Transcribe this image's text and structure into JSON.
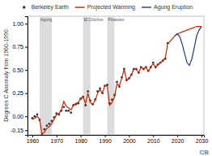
{
  "chart_data": {
    "type": "line",
    "ylabel": "Degrees C Anomaly from 1960-1990",
    "xlim": [
      1958,
      2031
    ],
    "ylim": [
      -0.2,
      1.08
    ],
    "xticks": [
      1960,
      1970,
      1980,
      1990,
      2000,
      2010,
      2020,
      2030
    ],
    "yticks": [
      -0.15,
      {
        "value": 0.0,
        "label": "0.00"
      },
      0.25,
      {
        "value": 0.5,
        "label": "0.50"
      },
      0.75,
      {
        "value": 1.0,
        "label": "1.00"
      }
    ],
    "legend": "top",
    "annotations": [
      {
        "text": "Agung",
        "xmin": 1963,
        "xmax": 1968
      },
      {
        "text": "El Chichon",
        "xmin": 1981,
        "xmax": 1984
      },
      {
        "text": "Pinatubo",
        "xmin": 1991,
        "xmax": 1994
      }
    ],
    "watermark": "CB",
    "series": [
      {
        "name": "Berkeley Earth",
        "type": "scatter",
        "color": "#333333",
        "x": [
          1960,
          1961,
          1962,
          1963,
          1964,
          1965,
          1966,
          1967,
          1968,
          1969,
          1970,
          1971,
          1972,
          1973,
          1974,
          1975,
          1976,
          1977,
          1978,
          1979,
          1980,
          1981,
          1982,
          1983,
          1984,
          1985,
          1986,
          1987,
          1988,
          1989,
          1990,
          1991,
          1992,
          1993,
          1994,
          1995,
          1996,
          1997,
          1998,
          1999,
          2000,
          2001,
          2002,
          2003,
          2004,
          2005,
          2006,
          2007,
          2008,
          2009,
          2010,
          2011,
          2012,
          2013,
          2014,
          2015,
          2016
        ],
        "values": [
          -0.02,
          0.0,
          0.02,
          -0.04,
          -0.2,
          -0.14,
          -0.1,
          -0.08,
          -0.05,
          -0.01,
          0.03,
          0.02,
          0.06,
          0.1,
          0.06,
          0.06,
          0.04,
          0.12,
          0.13,
          0.14,
          0.19,
          0.21,
          0.12,
          0.27,
          0.17,
          0.13,
          0.18,
          0.27,
          0.3,
          0.25,
          0.33,
          0.34,
          0.14,
          0.18,
          0.23,
          0.37,
          0.32,
          0.42,
          0.51,
          0.39,
          0.41,
          0.45,
          0.51,
          0.51,
          0.47,
          0.53,
          0.51,
          0.53,
          0.49,
          0.53,
          0.58,
          0.53,
          0.56,
          0.58,
          0.6,
          0.62,
          0.79
        ]
      },
      {
        "name": "Projected Warming",
        "type": "line",
        "color": "#cc2200",
        "x": [
          1960,
          1961,
          1962,
          1963,
          1964,
          1965,
          1966,
          1967,
          1968,
          1969,
          1970,
          1971,
          1972,
          1973,
          1974,
          1975,
          1976,
          1977,
          1978,
          1979,
          1980,
          1981,
          1982,
          1983,
          1984,
          1985,
          1986,
          1987,
          1988,
          1989,
          1990,
          1991,
          1992,
          1993,
          1994,
          1995,
          1996,
          1997,
          1998,
          1999,
          2000,
          2001,
          2002,
          2003,
          2004,
          2005,
          2006,
          2007,
          2008,
          2009,
          2010,
          2011,
          2012,
          2013,
          2014,
          2015,
          2016,
          2017,
          2018,
          2019,
          2020,
          2021,
          2022,
          2023,
          2024,
          2025,
          2026,
          2027,
          2028,
          2029,
          2030
        ],
        "values": [
          -0.03,
          -0.02,
          0.0,
          -0.03,
          -0.19,
          -0.17,
          -0.13,
          -0.11,
          -0.08,
          -0.03,
          0.02,
          0.03,
          0.07,
          0.16,
          0.11,
          0.09,
          0.07,
          0.12,
          0.14,
          0.15,
          0.19,
          0.21,
          0.14,
          0.25,
          0.15,
          0.13,
          0.17,
          0.25,
          0.29,
          0.25,
          0.33,
          0.33,
          0.12,
          0.15,
          0.21,
          0.35,
          0.33,
          0.41,
          0.51,
          0.39,
          0.41,
          0.45,
          0.51,
          0.51,
          0.47,
          0.53,
          0.51,
          0.53,
          0.49,
          0.53,
          0.57,
          0.53,
          0.56,
          0.58,
          0.6,
          0.63,
          0.78,
          0.81,
          0.84,
          0.87,
          0.89,
          0.9,
          0.91,
          0.92,
          0.93,
          0.94,
          0.95,
          0.96,
          0.97,
          0.97,
          0.97
        ]
      },
      {
        "name": "Agung Eruption",
        "type": "line",
        "color": "#1f3d7a",
        "x": [
          2019,
          2020,
          2021,
          2022,
          2023,
          2024,
          2025,
          2026,
          2027,
          2028,
          2029,
          2030
        ],
        "values": [
          0.87,
          0.89,
          0.86,
          0.78,
          0.68,
          0.58,
          0.55,
          0.62,
          0.74,
          0.87,
          0.93,
          0.97
        ]
      }
    ]
  }
}
